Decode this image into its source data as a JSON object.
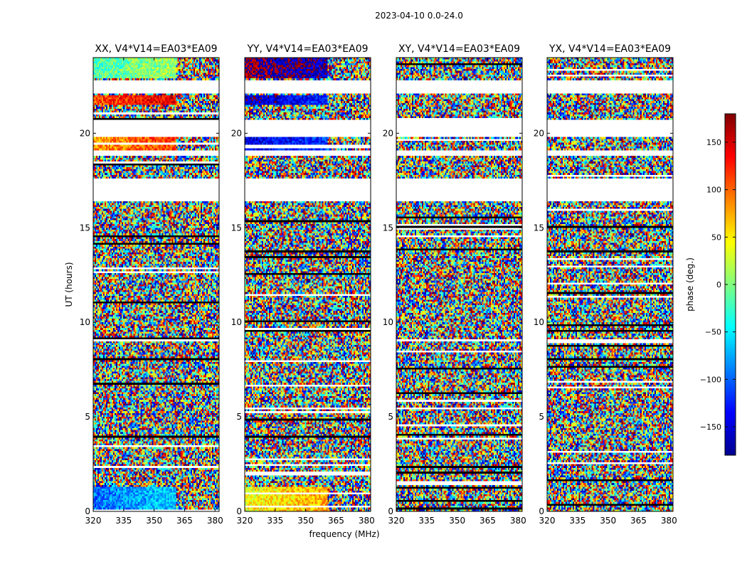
{
  "chart_data": {
    "type": "heatmap",
    "suptitle": "2023-04-10 0.0-24.0",
    "xlabel": "frequency (MHz)",
    "ylabel": "UT (hours)",
    "colorbar_label": "phase (deg.)",
    "xlim": [
      320,
      382
    ],
    "ylim": [
      0,
      24
    ],
    "clim": [
      -180,
      180
    ],
    "x_ticks": [
      "320",
      "335",
      "350",
      "365",
      "380"
    ],
    "y_ticks": [
      "0",
      "5",
      "10",
      "15",
      "20"
    ],
    "colorbar_ticks": [
      "150",
      "100",
      "50",
      "0",
      "−50",
      "−100",
      "−150"
    ],
    "colormap": [
      "#00008f",
      "#0000ff",
      "#0080ff",
      "#00ffff",
      "#80ff80",
      "#ffff00",
      "#ff8000",
      "#ff0000",
      "#800000"
    ],
    "flagged_ut_ranges": [
      [
        22.1,
        22.8
      ],
      [
        19.8,
        20.7
      ],
      [
        16.4,
        17.6
      ],
      [
        18.8,
        19.1
      ]
    ],
    "panels": [
      {
        "title": "XX, V4*V14=EA03*EA09",
        "coherent_phase": [
          [
            0,
            1.3,
            -95
          ],
          [
            21.5,
            22.0,
            110
          ],
          [
            19.0,
            19.8,
            80
          ],
          [
            22.9,
            24.0,
            -20
          ]
        ]
      },
      {
        "title": "YY, V4*V14=EA03*EA09",
        "coherent_phase": [
          [
            0,
            1.3,
            40
          ],
          [
            21.5,
            22.0,
            -160
          ],
          [
            19.0,
            19.8,
            -150
          ],
          [
            22.9,
            24.0,
            170
          ]
        ]
      },
      {
        "title": "XY, V4*V14=EA03*EA09",
        "coherent_phase": []
      },
      {
        "title": "YX, V4*V14=EA03*EA09",
        "coherent_phase": []
      }
    ]
  }
}
